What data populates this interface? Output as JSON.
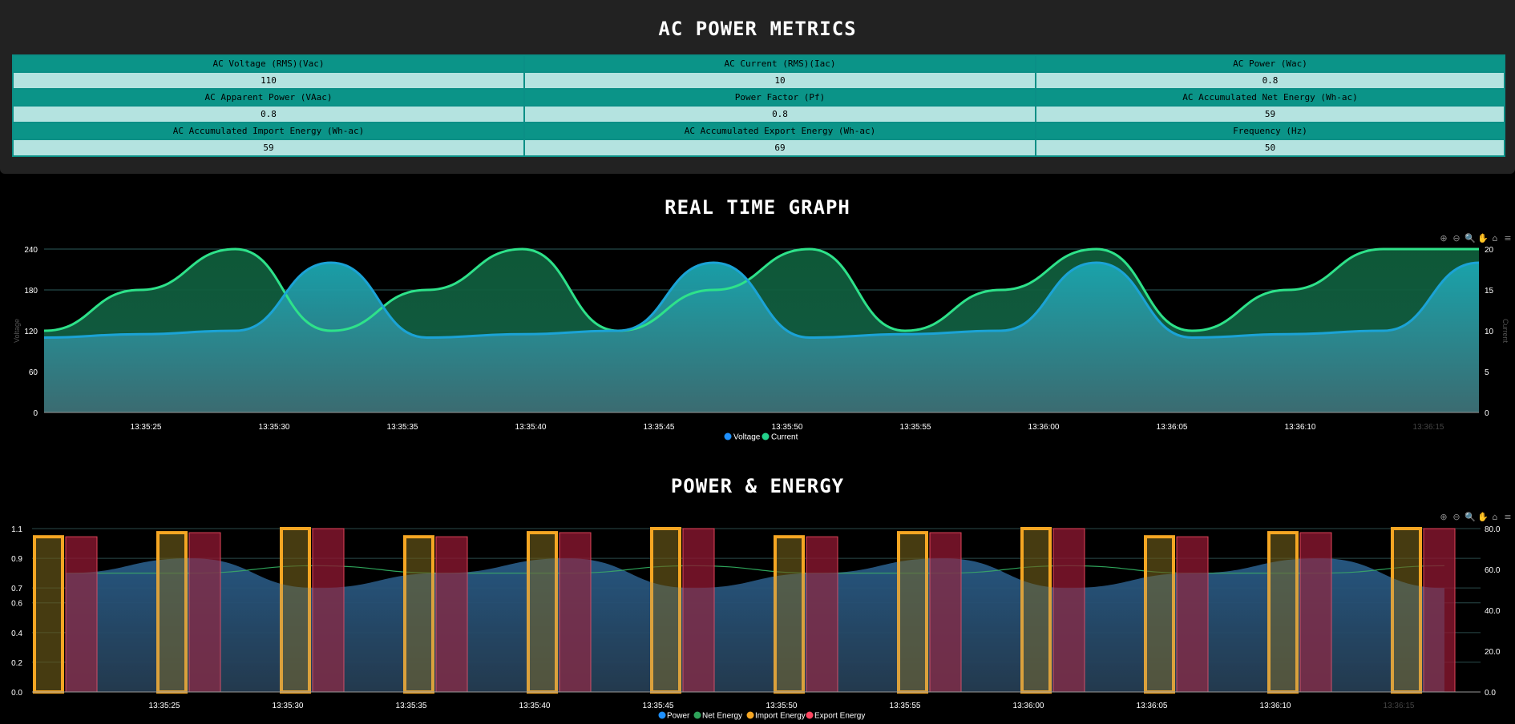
{
  "metrics_title": "AC POWER METRICS",
  "metrics": [
    [
      {
        "label": "AC Voltage (RMS)(Vac)",
        "value": "110"
      },
      {
        "label": "AC Current (RMS)(Iac)",
        "value": "10"
      },
      {
        "label": "AC Power (Wac)",
        "value": "0.8"
      }
    ],
    [
      {
        "label": "AC Apparent Power (VAac)",
        "value": "0.8"
      },
      {
        "label": "Power Factor (Pf)",
        "value": "0.8"
      },
      {
        "label": "AC Accumulated Net Energy (Wh-ac)",
        "value": "59"
      }
    ],
    [
      {
        "label": "AC Accumulated Import Energy (Wh-ac)",
        "value": "59"
      },
      {
        "label": "AC Accumulated Export Energy (Wh-ac)",
        "value": "69"
      },
      {
        "label": "Frequency (Hz)",
        "value": "50"
      }
    ]
  ],
  "graph1_title": "REAL TIME GRAPH",
  "graph2_title": "POWER & ENERGY",
  "toolbar_icons": [
    "zoom-in-icon",
    "zoom-out-icon",
    "selection-zoom-icon",
    "pan-hand-icon",
    "home-icon",
    "menu-icon"
  ],
  "colors": {
    "voltage": "#1ba3d6",
    "current": "#2ee28a",
    "power": "#1e5a8a",
    "net_energy": "#2ea35a",
    "import_energy": "#f5a623",
    "export_energy": "#e0455a",
    "legend_voltage": "#1e90ff",
    "legend_current": "#23d18b",
    "legend_power": "#1e90ff",
    "legend_import": "#f5a623",
    "legend_export": "#ff4560"
  },
  "chart_data": [
    {
      "type": "area",
      "title": "REAL TIME GRAPH",
      "x_ticks": [
        "13:35:25",
        "13:35:30",
        "13:35:35",
        "13:35:40",
        "13:35:45",
        "13:35:50",
        "13:35:55",
        "13:36:00",
        "13:36:05",
        "13:36:10",
        "13:36:15"
      ],
      "y_left": {
        "label": "Voltage",
        "ticks": [
          "0",
          "60",
          "120",
          "180",
          "240"
        ],
        "range": [
          0,
          240
        ]
      },
      "y_right": {
        "label": "Current",
        "ticks": [
          "0",
          "5",
          "10",
          "15",
          "20"
        ],
        "range": [
          0,
          20
        ]
      },
      "series": [
        {
          "name": "Voltage",
          "axis": "left",
          "values": [
            110,
            115,
            120,
            220,
            110,
            115,
            120,
            220,
            110,
            115,
            120,
            220,
            110,
            115,
            120,
            220
          ]
        },
        {
          "name": "Current",
          "axis": "right",
          "values": [
            10,
            15,
            20,
            10,
            15,
            20,
            10,
            15,
            20,
            10,
            15,
            20,
            10,
            15,
            20,
            20
          ]
        }
      ],
      "legend": [
        "Voltage",
        "Current"
      ],
      "legend_position": "bottom"
    },
    {
      "type": "bar",
      "title": "POWER & ENERGY",
      "x_ticks": [
        "13:35:25",
        "13:35:30",
        "13:35:35",
        "13:35:40",
        "13:35:45",
        "13:35:50",
        "13:35:55",
        "13:36:00",
        "13:36:05",
        "13:36:10",
        "13:36:15"
      ],
      "y_left": {
        "ticks": [
          "0.0",
          "0.2",
          "0.4",
          "0.6",
          "0.7",
          "0.9",
          "1.1"
        ],
        "range": [
          0,
          1.1
        ]
      },
      "y_right": {
        "ticks": [
          "0.0",
          "20.0",
          "40.0",
          "60.0",
          "80.0"
        ],
        "range": [
          0,
          80
        ]
      },
      "series": [
        {
          "name": "Power",
          "type": "area",
          "axis": "left",
          "values": [
            0.8,
            0.9,
            0.7,
            0.8,
            0.9,
            0.7,
            0.8,
            0.9,
            0.7,
            0.8,
            0.9,
            0.7
          ]
        },
        {
          "name": "Net Energy",
          "type": "line",
          "axis": "left",
          "values": [
            0.8,
            0.8,
            0.85,
            0.8,
            0.8,
            0.85,
            0.8,
            0.8,
            0.85,
            0.8,
            0.8,
            0.85
          ]
        },
        {
          "name": "Import Energy",
          "type": "bar",
          "axis": "right",
          "values": [
            76,
            78,
            80,
            76,
            78,
            80,
            76,
            78,
            80,
            76,
            78,
            80
          ]
        },
        {
          "name": "Export Energy",
          "type": "bar",
          "axis": "right",
          "values": [
            76,
            78,
            80,
            76,
            78,
            80,
            76,
            78,
            80,
            76,
            78,
            80
          ]
        }
      ],
      "legend": [
        "Power",
        "Net Energy",
        "Import Energy",
        "Export Energy"
      ],
      "legend_position": "bottom"
    }
  ]
}
